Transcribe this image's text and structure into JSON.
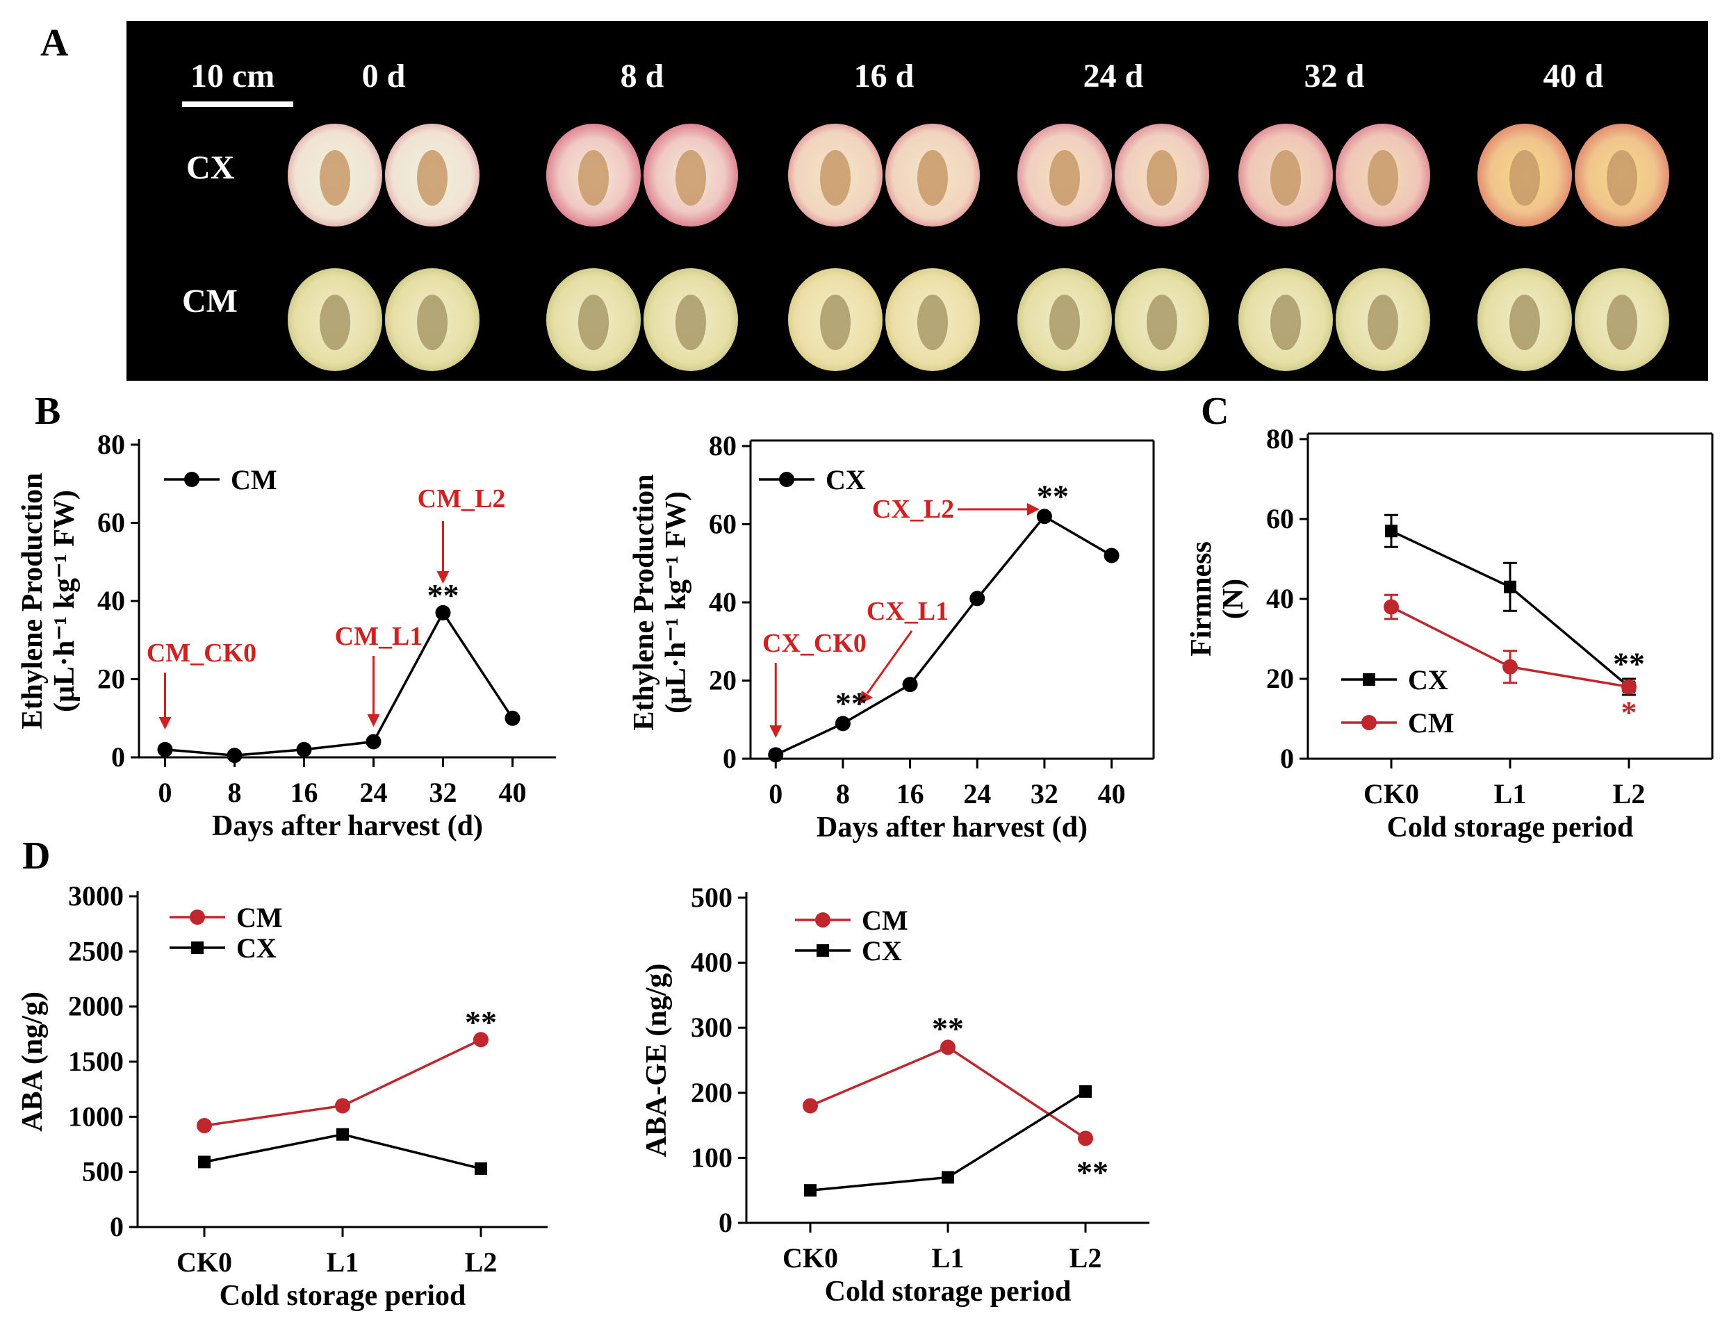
{
  "panel_labels": [
    "A",
    "B",
    "C",
    "D"
  ],
  "colors": {
    "cm_red": "#c0272d",
    "cx_black": "#000000",
    "annotation_red": "#d02020",
    "background_photo": "#000000"
  },
  "photo": {
    "scale_bar_label": "10 cm",
    "days": [
      "0 d",
      "8 d",
      "16 d",
      "24 d",
      "32 d",
      "40 d"
    ],
    "rows": [
      "CX",
      "CM"
    ]
  },
  "chart_data": [
    {
      "id": "B-left",
      "type": "line",
      "x": [
        0,
        8,
        16,
        24,
        32,
        40
      ],
      "xticks": [
        "0",
        "8",
        "16",
        "24",
        "32",
        "40"
      ],
      "series": [
        {
          "name": "CM",
          "values": [
            2,
            0.5,
            2,
            4,
            37,
            10
          ]
        }
      ],
      "xlabel": "Days after harvest (d)",
      "ylabel_line1": "Ethylene Production",
      "ylabel_line2": "(μL·h⁻¹ kg⁻¹ FW)",
      "ylim": [
        0,
        80
      ],
      "yticks": [
        "0",
        "20",
        "40",
        "60",
        "80"
      ],
      "annotations": [
        {
          "text": "CM_CK0",
          "x": 0,
          "y": 2
        },
        {
          "text": "CM_L1",
          "x": 24,
          "y": 4
        },
        {
          "text": "CM_L2",
          "x": 32,
          "y": 37
        }
      ],
      "significance": [
        {
          "text": "**",
          "x": 32,
          "y": 37
        }
      ]
    },
    {
      "id": "B-right",
      "type": "line",
      "x": [
        0,
        8,
        16,
        24,
        32,
        40
      ],
      "xticks": [
        "0",
        "8",
        "16",
        "24",
        "32",
        "40"
      ],
      "series": [
        {
          "name": "CX",
          "values": [
            1,
            9,
            19,
            41,
            62,
            52
          ]
        }
      ],
      "xlabel": "Days after harvest (d)",
      "ylabel_line1": "Ethylene Production",
      "ylabel_line2": "(μL·h⁻¹ kg⁻¹ FW)",
      "ylim": [
        0,
        80
      ],
      "yticks": [
        "0",
        "20",
        "40",
        "60",
        "80"
      ],
      "annotations": [
        {
          "text": "CX_CK0",
          "x": 0,
          "y": 1
        },
        {
          "text": "CX_L1",
          "x": 8,
          "y": 9
        },
        {
          "text": "CX_L2",
          "x": 32,
          "y": 62
        }
      ],
      "significance": [
        {
          "text": "**",
          "x": 8,
          "y": 9
        },
        {
          "text": "**",
          "x": 32,
          "y": 62
        }
      ]
    },
    {
      "id": "C",
      "type": "line",
      "categories": [
        "CK0",
        "L1",
        "L2"
      ],
      "series": [
        {
          "name": "CX",
          "values": [
            57,
            43,
            18
          ],
          "errors": [
            4,
            6,
            2
          ]
        },
        {
          "name": "CM",
          "values": [
            38,
            23,
            18
          ],
          "errors": [
            3,
            4,
            1
          ]
        }
      ],
      "xlabel": "Cold storage period",
      "ylabel_line1": "Firmness",
      "ylabel_line2": "(N)",
      "ylim": [
        0,
        80
      ],
      "yticks": [
        "0",
        "20",
        "40",
        "60",
        "80"
      ],
      "significance": [
        {
          "text": "**",
          "series": "CX",
          "index": 2
        },
        {
          "text": "*",
          "series": "CM",
          "index": 2
        }
      ]
    },
    {
      "id": "D-left",
      "type": "line",
      "categories": [
        "CK0",
        "L1",
        "L2"
      ],
      "series": [
        {
          "name": "CM",
          "values": [
            920,
            1100,
            1700
          ]
        },
        {
          "name": "CX",
          "values": [
            590,
            840,
            530
          ]
        }
      ],
      "xlabel": "Cold storage period",
      "ylabel": "ABA (ng/g)",
      "ylim": [
        0,
        3000
      ],
      "yticks": [
        "0",
        "500",
        "1000",
        "1500",
        "2000",
        "2500",
        "3000"
      ],
      "significance": [
        {
          "text": "**",
          "series": "CM",
          "index": 2
        }
      ]
    },
    {
      "id": "D-right",
      "type": "line",
      "categories": [
        "CK0",
        "L1",
        "L2"
      ],
      "series": [
        {
          "name": "CM",
          "values": [
            180,
            270,
            130
          ]
        },
        {
          "name": "CX",
          "values": [
            50,
            70,
            202
          ]
        }
      ],
      "xlabel": "Cold storage period",
      "ylabel": "ABA-GE (ng/g)",
      "ylim": [
        0,
        500
      ],
      "yticks": [
        "0",
        "100",
        "200",
        "300",
        "400",
        "500"
      ],
      "significance": [
        {
          "text": "**",
          "series": "CM",
          "index": 1
        },
        {
          "text": "**",
          "series": "CM",
          "index": 2
        }
      ]
    }
  ]
}
